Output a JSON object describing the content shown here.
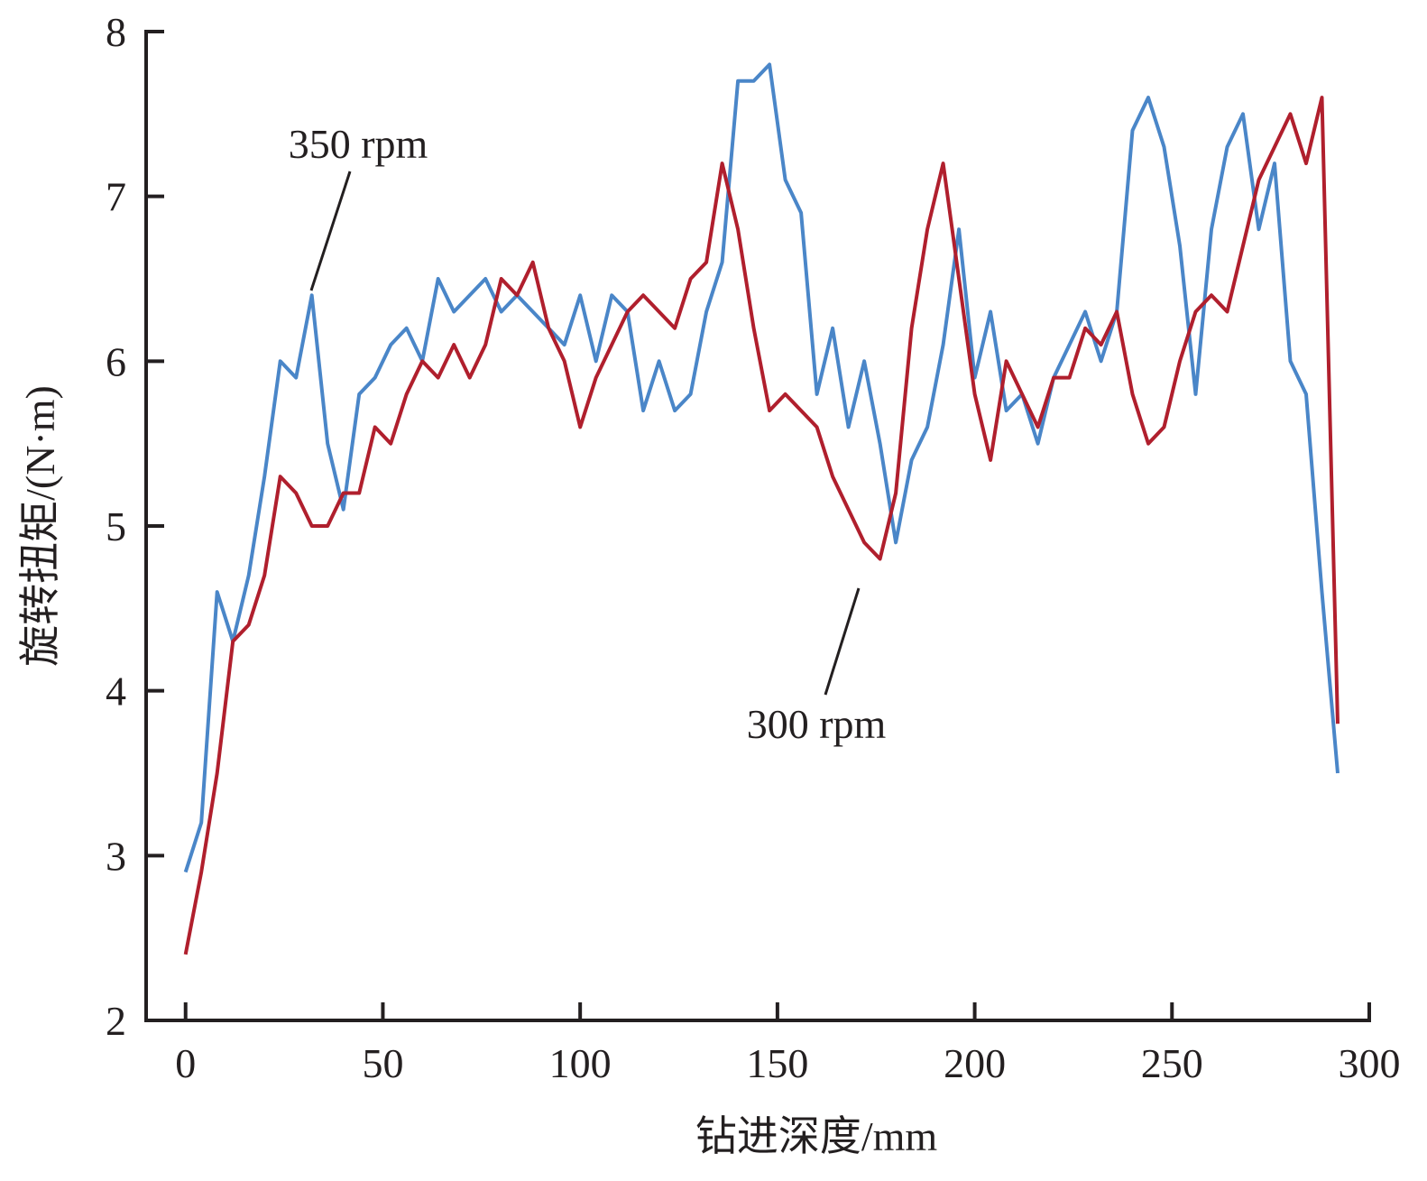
{
  "chart_data": {
    "type": "line",
    "xlabel": "钻进深度/mm",
    "ylabel": "旋转扭矩/(N·m)",
    "xlim": [
      -10,
      300
    ],
    "xticks": [
      0,
      50,
      100,
      150,
      200,
      250,
      300
    ],
    "ylim": [
      2,
      8
    ],
    "yticks": [
      2,
      3,
      4,
      5,
      6,
      7,
      8
    ],
    "x": [
      0,
      4,
      8,
      12,
      16,
      20,
      24,
      28,
      32,
      36,
      40,
      44,
      48,
      52,
      56,
      60,
      64,
      68,
      72,
      76,
      80,
      84,
      88,
      92,
      96,
      100,
      104,
      108,
      112,
      116,
      120,
      124,
      128,
      132,
      136,
      140,
      144,
      148,
      152,
      156,
      160,
      164,
      168,
      172,
      176,
      180,
      184,
      188,
      192,
      196,
      200,
      204,
      208,
      212,
      216,
      220,
      224,
      228,
      232,
      236,
      240,
      244,
      248,
      252,
      256,
      260,
      264,
      268,
      272,
      276,
      280,
      284,
      288,
      292
    ],
    "series": [
      {
        "name": "350 rpm",
        "color": "#4a86c8",
        "values": [
          2.9,
          3.2,
          4.6,
          4.3,
          4.7,
          5.3,
          6.0,
          5.9,
          6.4,
          5.5,
          5.1,
          5.8,
          5.9,
          6.1,
          6.2,
          6.0,
          6.5,
          6.3,
          6.4,
          6.5,
          6.3,
          6.4,
          6.3,
          6.2,
          6.1,
          6.4,
          6.0,
          6.4,
          6.3,
          5.7,
          6.0,
          5.7,
          5.8,
          6.3,
          6.6,
          7.7,
          7.7,
          7.8,
          7.1,
          6.9,
          5.8,
          6.2,
          5.6,
          6.0,
          5.5,
          4.9,
          5.4,
          5.6,
          6.1,
          6.8,
          5.9,
          6.3,
          5.7,
          5.8,
          5.5,
          5.9,
          6.1,
          6.3,
          6.0,
          6.3,
          7.4,
          7.6,
          7.3,
          6.7,
          5.8,
          6.8,
          7.3,
          7.5,
          6.8,
          7.2,
          6.0,
          5.8,
          4.6,
          3.5
        ]
      },
      {
        "name": "300 rpm",
        "color": "#b01f2d",
        "values": [
          2.4,
          2.9,
          3.5,
          4.3,
          4.4,
          4.7,
          5.3,
          5.2,
          5.0,
          5.0,
          5.2,
          5.2,
          5.6,
          5.5,
          5.8,
          6.0,
          5.9,
          6.1,
          5.9,
          6.1,
          6.5,
          6.4,
          6.6,
          6.2,
          6.0,
          5.6,
          5.9,
          6.1,
          6.3,
          6.4,
          6.3,
          6.2,
          6.5,
          6.6,
          7.2,
          6.8,
          6.2,
          5.7,
          5.8,
          5.7,
          5.6,
          5.3,
          5.1,
          4.9,
          4.8,
          5.2,
          6.2,
          6.8,
          7.2,
          6.5,
          5.8,
          5.4,
          6.0,
          5.8,
          5.6,
          5.9,
          5.9,
          6.2,
          6.1,
          6.3,
          5.8,
          5.5,
          5.6,
          6.0,
          6.3,
          6.4,
          6.3,
          6.7,
          7.1,
          7.3,
          7.5,
          7.2,
          7.6,
          3.8
        ]
      }
    ],
    "annotations": [
      "350 rpm",
      "300 rpm"
    ]
  }
}
